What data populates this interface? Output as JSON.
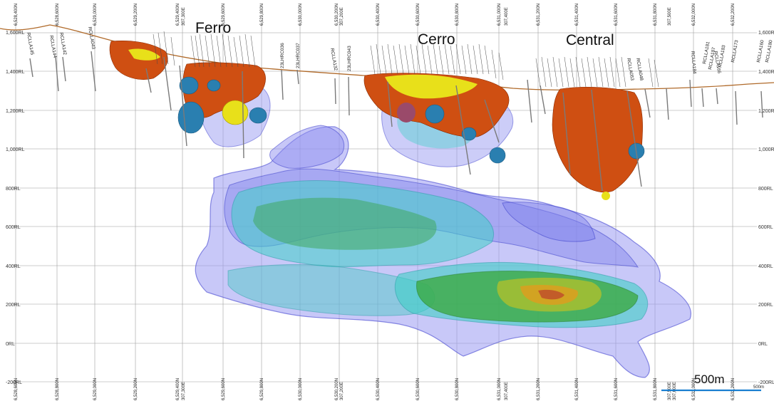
{
  "deposits": [
    "Ferro",
    "Cerro",
    "Central"
  ],
  "rl_labels": [
    "1,600RL",
    "1,400RL",
    "1,200RL",
    "1,000RL",
    "800RL",
    "600RL",
    "400RL",
    "200RL",
    "0RL",
    "-200RL"
  ],
  "northings_top": [
    "6,528,400N",
    "6,528,600N",
    "6,529,000N",
    "6,529,200N",
    "6,529,400N",
    "6,529,600N",
    "6,529,800N",
    "6,530,000N",
    "6,530,200N",
    "6,530,400N",
    "6,530,600N",
    "6,530,800N",
    "6,531,000N",
    "6,531,200N",
    "6,531,400N",
    "6,531,600N",
    "6,531,800N",
    "6,532,000N",
    "6,532,200N"
  ],
  "northings_bottom": [
    "6,528,600N",
    "6,528,800N",
    "6,529,000N",
    "6,529,200N",
    "6,529,400N",
    "6,529,600N",
    "6,529,800N",
    "6,530,000N",
    "6,530,200N",
    "6,530,400N",
    "6,530,600N",
    "6,530,800N",
    "6,531,000N",
    "6,531,200N",
    "6,531,400N",
    "6,531,600N",
    "6,531,800N",
    "6,532,000N",
    "6,532,200N"
  ],
  "eastings_top": [
    "307,300E",
    "307,200E",
    "307,400E",
    "307,500E"
  ],
  "eastings_bottom": [
    "307,300E",
    "307,200E",
    "307,400E",
    "307,500E",
    "307,600E"
  ],
  "hole_labels": [
    "RCLLA145",
    "RCLLA144",
    "RCLLA142",
    "RCLLA043",
    "23LHRC036",
    "23LHRC037",
    "RCLLA132",
    "23LHRC043",
    "RCLLA184",
    "RCLLA166",
    "RCLLA053",
    "RCLLA048",
    "RCLLA181",
    "RCLLA187",
    "RCLLA183",
    "RCLLA173",
    "RCLLA160",
    "RCLLA180"
  ],
  "scale_bar": "500m",
  "scale_tick": "500m",
  "colors": {
    "topography": "#b06a2a",
    "oxide_shell": "#cf4f12",
    "sulphide_core": "#e8e01a",
    "blue_body": "#2a7fb0",
    "low_grade_envelope": "#8d8ef0",
    "mid_grade": "#3fd0c8",
    "high_grade": "#3aa83a",
    "peak_grade": "#d8a020",
    "scale_bar": "#1a7fd0"
  }
}
